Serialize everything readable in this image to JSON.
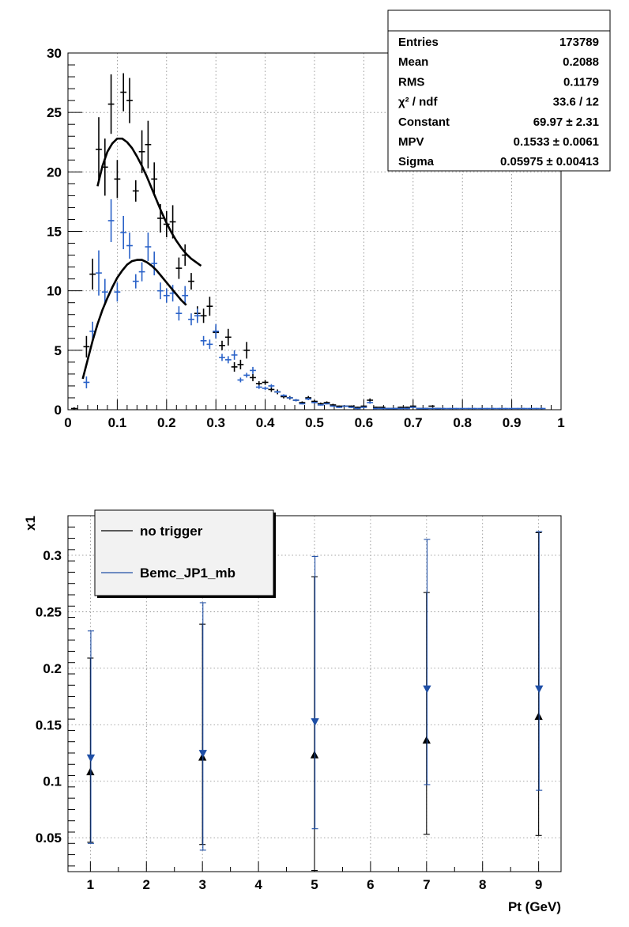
{
  "chart_data": [
    {
      "type": "scatter",
      "title": "",
      "xlabel": "",
      "ylabel": "",
      "xlim": [
        0,
        1
      ],
      "ylim": [
        0,
        30
      ],
      "grid": true,
      "x_ticks": [
        "0",
        "0.1",
        "0.2",
        "0.3",
        "0.4",
        "0.5",
        "0.6",
        "0.7",
        "0.8",
        "0.9",
        "1"
      ],
      "y_ticks": [
        "0",
        "5",
        "10",
        "15",
        "20",
        "25",
        "30"
      ],
      "colors": {
        "black_series": "#000000",
        "blue_series": "#2a62c8"
      },
      "series": [
        {
          "color": "#000000",
          "bin_width": 0.0125,
          "x": [
            0.0125,
            0.0375,
            0.05,
            0.0625,
            0.075,
            0.0875,
            0.1,
            0.1125,
            0.125,
            0.1375,
            0.15,
            0.1625,
            0.175,
            0.1875,
            0.2,
            0.2125,
            0.225,
            0.2375,
            0.25,
            0.2625,
            0.275,
            0.2875,
            0.3,
            0.3125,
            0.325,
            0.3375,
            0.35,
            0.3625,
            0.375,
            0.3875,
            0.4,
            0.4125,
            0.425,
            0.4375,
            0.45,
            0.4625,
            0.475,
            0.4875,
            0.5,
            0.5125,
            0.525,
            0.5375,
            0.55,
            0.5625,
            0.575,
            0.5875,
            0.6,
            0.6125,
            0.625,
            0.6375,
            0.65,
            0.6625,
            0.675,
            0.6875,
            0.7,
            0.7125,
            0.725,
            0.7375,
            0.75
          ],
          "y": [
            0.1,
            5.3,
            11.4,
            21.9,
            20.4,
            25.7,
            19.4,
            26.7,
            26.0,
            18.4,
            21.7,
            22.3,
            19.4,
            16.1,
            15.6,
            15.8,
            11.9,
            13.0,
            10.8,
            8.1,
            7.9,
            8.7,
            6.5,
            5.4,
            6.1,
            3.6,
            3.8,
            5.0,
            2.7,
            2.2,
            2.3,
            1.7,
            1.5,
            1.1,
            1.0,
            0.8,
            0.6,
            1.0,
            0.7,
            0.5,
            0.6,
            0.4,
            0.3,
            0.3,
            0.3,
            0.2,
            0.3,
            0.8,
            0.2,
            0.2,
            0.1,
            0.1,
            0.2,
            0.2,
            0.3,
            0.1,
            0.1,
            0.3,
            0.1
          ],
          "err": [
            0.1,
            0.9,
            1.3,
            2.7,
            2.4,
            2.5,
            1.6,
            1.6,
            1.9,
            0.9,
            1.8,
            2.0,
            1.4,
            1.2,
            1.1,
            1.4,
            0.9,
            0.9,
            0.7,
            0.6,
            0.6,
            0.8,
            0.5,
            0.4,
            0.7,
            0.4,
            0.4,
            0.7,
            0.3,
            0.2,
            0.2,
            0.2,
            0.2,
            0.15,
            0.15,
            0.1,
            0.1,
            0.15,
            0.1,
            0.1,
            0.1,
            0.1,
            0.05,
            0.05,
            0.05,
            0.05,
            0.05,
            0.15,
            0.05,
            0.05,
            0.05,
            0.05,
            0.05,
            0.05,
            0.05,
            0.05,
            0.05,
            0.05,
            0.05
          ]
        },
        {
          "color": "#2a62c8",
          "bin_width": 0.0125,
          "x": [
            0.0375,
            0.05,
            0.0625,
            0.075,
            0.0875,
            0.1,
            0.1125,
            0.125,
            0.1375,
            0.15,
            0.1625,
            0.175,
            0.1875,
            0.2,
            0.2125,
            0.225,
            0.2375,
            0.25,
            0.2625,
            0.275,
            0.2875,
            0.3,
            0.3125,
            0.325,
            0.3375,
            0.35,
            0.3625,
            0.375,
            0.3875,
            0.4,
            0.4125,
            0.425,
            0.4375,
            0.45,
            0.4625,
            0.475,
            0.4875,
            0.5,
            0.5125,
            0.525,
            0.5375,
            0.55,
            0.5625,
            0.575,
            0.5875,
            0.6,
            0.6125,
            0.625,
            0.6375,
            0.65,
            0.6625,
            0.675,
            0.6875,
            0.7,
            0.7125,
            0.725,
            0.7375,
            0.75,
            0.7625,
            0.775,
            0.7875,
            0.8,
            0.8125,
            0.825,
            0.8375,
            0.85,
            0.8625,
            0.875,
            0.8875,
            0.9,
            0.9125,
            0.925,
            0.9375,
            0.95,
            0.9625
          ],
          "y": [
            2.3,
            6.6,
            11.5,
            9.9,
            15.9,
            9.9,
            14.9,
            13.8,
            10.8,
            11.6,
            13.7,
            12.3,
            10.0,
            9.6,
            9.8,
            8.1,
            9.6,
            7.6,
            7.9,
            5.8,
            5.5,
            6.6,
            4.4,
            4.2,
            4.6,
            2.5,
            2.9,
            3.3,
            1.9,
            1.8,
            2.0,
            1.5,
            1.2,
            1.0,
            0.8,
            0.5,
            0.9,
            0.6,
            0.4,
            0.5,
            0.3,
            0.2,
            0.3,
            0.2,
            0.1,
            0.2,
            0.6,
            0.1,
            0.1,
            0.1,
            0.1,
            0.1,
            0.1,
            0.2,
            0.1,
            0.1,
            0.1,
            0.1,
            0.1,
            0.1,
            0.1,
            0.1,
            0.1,
            0.1,
            0.1,
            0.1,
            0.1,
            0.1,
            0.1,
            0.1,
            0.1,
            0.1,
            0.1,
            0.1,
            0.1
          ],
          "err": [
            0.5,
            0.8,
            1.9,
            1.1,
            1.8,
            0.8,
            1.4,
            1.1,
            0.6,
            0.8,
            1.2,
            1.0,
            0.7,
            0.6,
            0.7,
            0.6,
            0.8,
            0.5,
            0.6,
            0.4,
            0.4,
            0.6,
            0.3,
            0.3,
            0.4,
            0.2,
            0.2,
            0.3,
            0.15,
            0.15,
            0.15,
            0.1,
            0.1,
            0.1,
            0.1,
            0.05,
            0.1,
            0.05,
            0.05,
            0.05,
            0.05,
            0.05,
            0.05,
            0.05,
            0.05,
            0.05,
            0.1,
            0.05,
            0.05,
            0.05,
            0.05,
            0.05,
            0.05,
            0.05,
            0.05,
            0.05,
            0.05,
            0.05,
            0.05,
            0.05,
            0.05,
            0.05,
            0.05,
            0.05,
            0.05,
            0.05,
            0.05,
            0.05,
            0.05,
            0.05,
            0.05,
            0.05,
            0.05,
            0.05,
            0.05
          ]
        }
      ],
      "fits": [
        {
          "color": "#000000",
          "x": [
            0.06,
            0.07,
            0.08,
            0.09,
            0.1,
            0.11,
            0.12,
            0.13,
            0.14,
            0.15,
            0.16,
            0.17,
            0.18,
            0.19,
            0.2,
            0.21,
            0.22,
            0.23,
            0.24,
            0.25,
            0.26,
            0.27
          ],
          "y": [
            18.8,
            20.5,
            21.7,
            22.4,
            22.8,
            22.8,
            22.5,
            22.0,
            21.3,
            20.5,
            19.6,
            18.6,
            17.6,
            16.6,
            15.7,
            14.9,
            14.2,
            13.6,
            13.1,
            12.7,
            12.4,
            12.1
          ]
        },
        {
          "color": "#000000",
          "x": [
            0.03,
            0.04,
            0.05,
            0.06,
            0.07,
            0.08,
            0.09,
            0.1,
            0.11,
            0.12,
            0.13,
            0.14,
            0.15,
            0.16,
            0.17,
            0.18,
            0.19,
            0.2,
            0.21,
            0.22,
            0.23,
            0.24
          ],
          "y": [
            2.6,
            4.2,
            5.8,
            7.2,
            8.4,
            9.4,
            10.3,
            11.1,
            11.7,
            12.2,
            12.5,
            12.6,
            12.6,
            12.4,
            12.1,
            11.7,
            11.2,
            10.7,
            10.2,
            9.7,
            9.2,
            8.8
          ]
        }
      ],
      "stats_box": {
        "rows": [
          {
            "label": "Entries",
            "value": "173789"
          },
          {
            "label": "Mean",
            "value": "0.2088"
          },
          {
            "label": "RMS",
            "value": "0.1179"
          },
          {
            "label": "χ² / ndf",
            "value": "33.6 / 12"
          },
          {
            "label": "Constant",
            "value": "69.97 ± 2.31"
          },
          {
            "label": "MPV",
            "value": "0.1533 ± 0.0061"
          },
          {
            "label": "Sigma",
            "value": "0.05975 ± 0.00413"
          }
        ]
      }
    },
    {
      "type": "scatter",
      "title": "",
      "xlabel": "Pt (GeV)",
      "ylabel": "x1",
      "xlim": [
        0.6,
        9.4
      ],
      "ylim": [
        0.02,
        0.335
      ],
      "grid": true,
      "x_ticks": [
        "1",
        "2",
        "3",
        "4",
        "5",
        "6",
        "7",
        "8",
        "9"
      ],
      "y_ticks": [
        "0.05",
        "0.1",
        "0.15",
        "0.2",
        "0.25",
        "0.3"
      ],
      "legend": {
        "placement": "top-left",
        "entries": [
          "no trigger",
          "Bemc_JP1_mb"
        ]
      },
      "series": [
        {
          "name": "no trigger",
          "color": "#000000",
          "marker": "triangle-up",
          "x": [
            1,
            3,
            5,
            7,
            9
          ],
          "y": [
            0.108,
            0.121,
            0.123,
            0.136,
            0.157
          ],
          "err_low": [
            0.062,
            0.077,
            0.102,
            0.083,
            0.105
          ],
          "err_high": [
            0.101,
            0.118,
            0.158,
            0.131,
            0.163
          ]
        },
        {
          "name": "Bemc_JP1_mb",
          "color": "#1f4fa6",
          "marker": "triangle-down",
          "x": [
            1,
            3,
            5,
            7,
            9
          ],
          "y": [
            0.121,
            0.125,
            0.153,
            0.182,
            0.182
          ],
          "err_low": [
            0.076,
            0.086,
            0.095,
            0.085,
            0.09
          ],
          "err_high": [
            0.112,
            0.133,
            0.146,
            0.132,
            0.139
          ]
        }
      ]
    }
  ]
}
